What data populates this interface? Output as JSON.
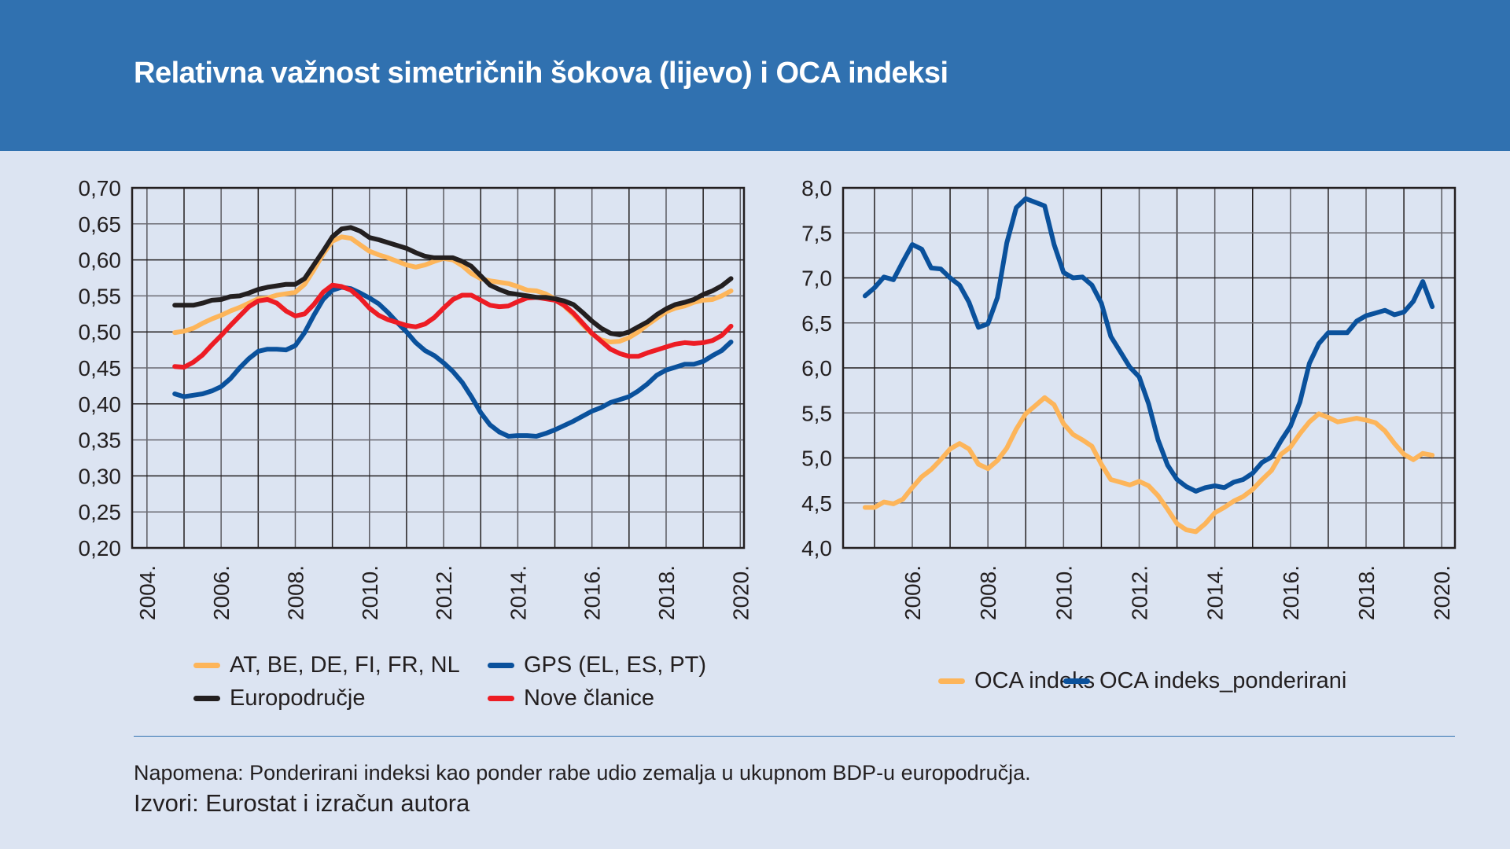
{
  "header": {
    "title": "Relativna važnost simetričnih šokova (lijevo) i OCA indeksi"
  },
  "footer": {
    "note": "Napomena: Ponderirani indeksi kao ponder rabe udio zemalja u ukupnom BDP-u europodručja.",
    "source": "Izvori: Eurostat i izračun autora"
  },
  "colors": {
    "header_bg": "#3071b0",
    "page_bg": "#dce4f2",
    "orange": "#fdb55a",
    "blue": "#0a519c",
    "black": "#231f20",
    "red": "#ed1c24"
  },
  "chart_data": [
    {
      "type": "line",
      "title": "Relativna važnost simetričnih šokova",
      "xlabel": "",
      "ylabel": "",
      "ylim": [
        0.2,
        0.7
      ],
      "xlim": [
        2003.6,
        2020.1
      ],
      "grid": true,
      "legend_position": "bottom",
      "yticks": [
        "0,70",
        "0,65",
        "0,60",
        "0,55",
        "0,50",
        "0,45",
        "0,40",
        "0,35",
        "0,30",
        "0,25",
        "0,20"
      ],
      "ytick_values": [
        0.7,
        0.65,
        0.6,
        0.55,
        0.5,
        0.45,
        0.4,
        0.35,
        0.3,
        0.25,
        0.2
      ],
      "xticks": [
        "2004.",
        "2006.",
        "2008.",
        "2010.",
        "2012.",
        "2014.",
        "2016.",
        "2018.",
        "2020."
      ],
      "xtick_values": [
        2004,
        2006,
        2008,
        2010,
        2012,
        2014,
        2016,
        2018,
        2020
      ],
      "x": [
        2004.75,
        2005.0,
        2005.25,
        2005.5,
        2005.75,
        2006.0,
        2006.25,
        2006.5,
        2006.75,
        2007.0,
        2007.25,
        2007.5,
        2007.75,
        2008.0,
        2008.25,
        2008.5,
        2008.75,
        2009.0,
        2009.25,
        2009.5,
        2009.75,
        2010.0,
        2010.25,
        2010.5,
        2010.75,
        2011.0,
        2011.25,
        2011.5,
        2011.75,
        2012.0,
        2012.25,
        2012.5,
        2012.75,
        2013.0,
        2013.25,
        2013.5,
        2013.75,
        2014.0,
        2014.25,
        2014.5,
        2014.75,
        2015.0,
        2015.25,
        2015.5,
        2015.75,
        2016.0,
        2016.25,
        2016.5,
        2016.75,
        2017.0,
        2017.25,
        2017.5,
        2017.75,
        2018.0,
        2018.25,
        2018.5,
        2018.75,
        2019.0,
        2019.25,
        2019.5,
        2019.75
      ],
      "series": [
        {
          "name": "AT, BE, DE, FI, FR, NL",
          "color": "#fdb55a",
          "values": [
            0.499,
            0.501,
            0.505,
            0.512,
            0.518,
            0.523,
            0.529,
            0.534,
            0.54,
            0.546,
            0.547,
            0.551,
            0.553,
            0.555,
            0.566,
            0.586,
            0.608,
            0.626,
            0.632,
            0.63,
            0.621,
            0.612,
            0.607,
            0.603,
            0.598,
            0.593,
            0.59,
            0.593,
            0.598,
            0.602,
            0.6,
            0.592,
            0.581,
            0.574,
            0.571,
            0.569,
            0.567,
            0.563,
            0.558,
            0.557,
            0.553,
            0.546,
            0.536,
            0.524,
            0.51,
            0.497,
            0.489,
            0.486,
            0.487,
            0.492,
            0.5,
            0.51,
            0.519,
            0.528,
            0.533,
            0.536,
            0.541,
            0.544,
            0.545,
            0.55,
            0.557
          ]
        },
        {
          "name": "GPS (EL, ES, PT)",
          "color": "#0a519c",
          "values": [
            0.414,
            0.41,
            0.412,
            0.414,
            0.418,
            0.424,
            0.435,
            0.45,
            0.463,
            0.473,
            0.476,
            0.476,
            0.475,
            0.481,
            0.499,
            0.523,
            0.545,
            0.558,
            0.562,
            0.56,
            0.554,
            0.547,
            0.539,
            0.527,
            0.513,
            0.5,
            0.485,
            0.474,
            0.467,
            0.457,
            0.445,
            0.43,
            0.41,
            0.388,
            0.371,
            0.361,
            0.355,
            0.356,
            0.356,
            0.355,
            0.359,
            0.364,
            0.37,
            0.376,
            0.383,
            0.39,
            0.395,
            0.402,
            0.406,
            0.41,
            0.418,
            0.428,
            0.44,
            0.447,
            0.451,
            0.455,
            0.455,
            0.459,
            0.467,
            0.474,
            0.486
          ]
        },
        {
          "name": "Europodručje",
          "color": "#231f20",
          "values": [
            0.537,
            0.537,
            0.537,
            0.54,
            0.544,
            0.545,
            0.549,
            0.55,
            0.554,
            0.559,
            0.562,
            0.564,
            0.566,
            0.566,
            0.574,
            0.593,
            0.612,
            0.632,
            0.643,
            0.645,
            0.64,
            0.631,
            0.628,
            0.624,
            0.62,
            0.616,
            0.61,
            0.605,
            0.603,
            0.603,
            0.603,
            0.598,
            0.591,
            0.578,
            0.565,
            0.559,
            0.554,
            0.552,
            0.55,
            0.548,
            0.548,
            0.546,
            0.543,
            0.538,
            0.527,
            0.515,
            0.505,
            0.498,
            0.496,
            0.5,
            0.507,
            0.514,
            0.524,
            0.532,
            0.538,
            0.541,
            0.545,
            0.552,
            0.557,
            0.564,
            0.574
          ]
        },
        {
          "name": "Nove članice",
          "color": "#ed1c24",
          "values": [
            0.452,
            0.451,
            0.458,
            0.468,
            0.482,
            0.495,
            0.509,
            0.522,
            0.535,
            0.543,
            0.545,
            0.54,
            0.529,
            0.522,
            0.525,
            0.538,
            0.555,
            0.565,
            0.563,
            0.558,
            0.547,
            0.533,
            0.523,
            0.517,
            0.513,
            0.509,
            0.507,
            0.511,
            0.52,
            0.533,
            0.545,
            0.551,
            0.551,
            0.544,
            0.537,
            0.535,
            0.536,
            0.542,
            0.547,
            0.548,
            0.546,
            0.544,
            0.537,
            0.526,
            0.512,
            0.498,
            0.487,
            0.476,
            0.47,
            0.466,
            0.466,
            0.471,
            0.475,
            0.479,
            0.483,
            0.485,
            0.484,
            0.485,
            0.488,
            0.495,
            0.508
          ]
        }
      ]
    },
    {
      "type": "line",
      "title": "OCA indeksi",
      "xlabel": "",
      "ylabel": "",
      "ylim": [
        4.0,
        8.0
      ],
      "xlim": [
        2004.17,
        2020.35
      ],
      "grid": true,
      "legend_position": "bottom",
      "yticks": [
        "8,0",
        "7,5",
        "7,0",
        "6,5",
        "6,0",
        "5,5",
        "5,0",
        "4,5",
        "4,0"
      ],
      "ytick_values": [
        8.0,
        7.5,
        7.0,
        6.5,
        6.0,
        5.5,
        5.0,
        4.5,
        4.0
      ],
      "xticks": [
        "2006.",
        "2008.",
        "2010.",
        "2012.",
        "2014.",
        "2016.",
        "2018.",
        "2020."
      ],
      "xtick_values": [
        2006,
        2008,
        2010,
        2012,
        2014,
        2016,
        2018,
        2020
      ],
      "x": [
        2004.75,
        2005.0,
        2005.25,
        2005.5,
        2005.75,
        2006.0,
        2006.25,
        2006.5,
        2006.75,
        2007.0,
        2007.25,
        2007.5,
        2007.75,
        2008.0,
        2008.25,
        2008.5,
        2008.75,
        2009.0,
        2009.25,
        2009.5,
        2009.75,
        2010.0,
        2010.25,
        2010.5,
        2010.75,
        2011.0,
        2011.25,
        2011.5,
        2011.75,
        2012.0,
        2012.25,
        2012.5,
        2012.75,
        2013.0,
        2013.25,
        2013.5,
        2013.75,
        2014.0,
        2014.25,
        2014.5,
        2014.75,
        2015.0,
        2015.25,
        2015.5,
        2015.75,
        2016.0,
        2016.25,
        2016.5,
        2016.75,
        2017.0,
        2017.25,
        2017.5,
        2017.75,
        2018.0,
        2018.25,
        2018.5,
        2018.75,
        2019.0,
        2019.25,
        2019.5,
        2019.75
      ],
      "series": [
        {
          "name": "OCA indeks",
          "color": "#fdb55a",
          "values": [
            4.45,
            4.45,
            4.51,
            4.49,
            4.54,
            4.67,
            4.79,
            4.87,
            4.98,
            5.1,
            5.16,
            5.1,
            4.93,
            4.88,
            4.97,
            5.11,
            5.32,
            5.49,
            5.58,
            5.67,
            5.59,
            5.38,
            5.26,
            5.2,
            5.13,
            4.93,
            4.76,
            4.73,
            4.7,
            4.74,
            4.69,
            4.58,
            4.43,
            4.27,
            4.2,
            4.18,
            4.27,
            4.39,
            4.45,
            4.52,
            4.57,
            4.65,
            4.76,
            4.86,
            5.04,
            5.12,
            5.27,
            5.4,
            5.49,
            5.45,
            5.4,
            5.42,
            5.44,
            5.42,
            5.39,
            5.3,
            5.16,
            5.04,
            4.98,
            5.05,
            5.03
          ]
        },
        {
          "name": "OCA indeks_ponderirani",
          "color": "#0a519c",
          "values": [
            6.8,
            6.89,
            7.01,
            6.98,
            7.18,
            7.37,
            7.32,
            7.11,
            7.1,
            7.0,
            6.92,
            6.73,
            6.45,
            6.49,
            6.78,
            7.39,
            7.78,
            7.88,
            7.84,
            7.8,
            7.37,
            7.06,
            7.0,
            7.01,
            6.92,
            6.72,
            6.35,
            6.18,
            6.01,
            5.9,
            5.6,
            5.2,
            4.92,
            4.76,
            4.68,
            4.63,
            4.67,
            4.69,
            4.67,
            4.73,
            4.76,
            4.83,
            4.95,
            5.01,
            5.19,
            5.35,
            5.62,
            6.05,
            6.27,
            6.39,
            6.39,
            6.39,
            6.52,
            6.58,
            6.61,
            6.64,
            6.59,
            6.62,
            6.74,
            6.96,
            6.68
          ]
        }
      ]
    }
  ]
}
